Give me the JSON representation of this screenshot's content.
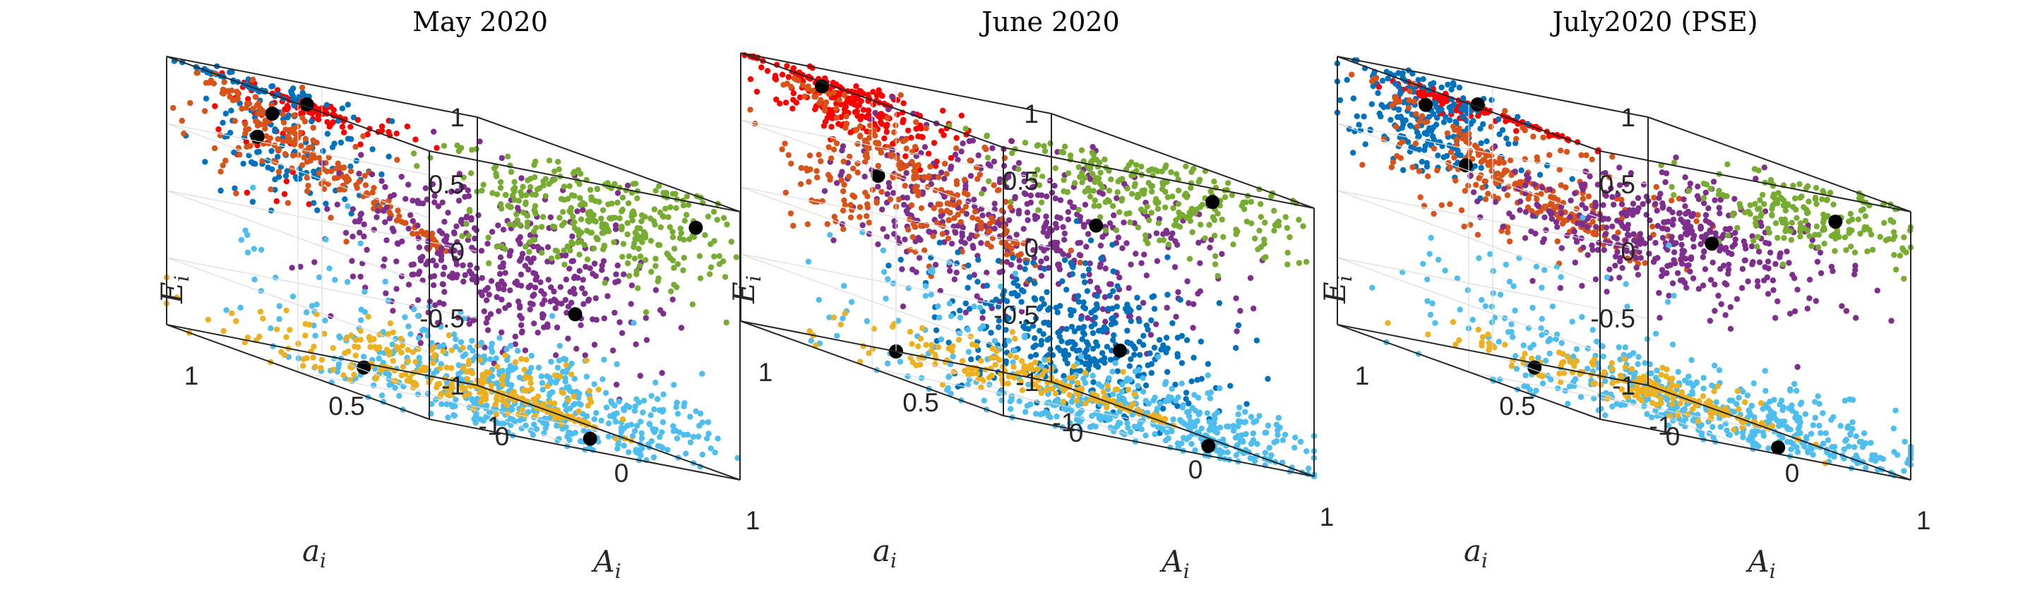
{
  "figure": {
    "panels": [
      {
        "title": "May 2020"
      },
      {
        "title": "June 2020"
      },
      {
        "title": "July2020 (PSE)"
      }
    ],
    "axis_labels": {
      "x": {
        "main": "A",
        "sub": "i"
      },
      "y": {
        "main": "a",
        "sub": "i"
      },
      "z": {
        "main": "E",
        "sub": "i"
      }
    },
    "ticks": {
      "z": [
        "-1",
        "-0.5",
        "0",
        "0.5",
        "1"
      ],
      "y": [
        "0",
        "0.5",
        "1"
      ],
      "x": [
        "-1",
        "0",
        "1"
      ]
    }
  },
  "chart_data": [
    {
      "type": "scatter",
      "projection": "3d",
      "title": "May 2020",
      "xlabel": "A_i",
      "ylabel": "a_i",
      "zlabel": "E_i",
      "xlim": [
        -1,
        1
      ],
      "ylim": [
        0,
        1
      ],
      "zlim": [
        -1,
        1
      ],
      "grid": true,
      "cluster_colors": [
        "#0072BD",
        "#D95319",
        "#EDB120",
        "#7E2F8E",
        "#77AC30",
        "#4DBEEE",
        "#FF0000"
      ],
      "centroid_color": "#000000",
      "centroids": [
        {
          "x": -0.05,
          "y": 0.95,
          "z": 1.0
        },
        {
          "x": -0.55,
          "y": 0.85,
          "z": 0.8
        },
        {
          "x": -0.9,
          "y": 0.75,
          "z": 0.55
        },
        {
          "x": 0.9,
          "y": 0.1,
          "z": 0.8
        },
        {
          "x": 0.1,
          "y": 0.15,
          "z": -0.15
        },
        {
          "x": 0.45,
          "y": 0.25,
          "z": -1.0
        },
        {
          "x": -0.8,
          "y": 0.45,
          "z": -1.0
        }
      ]
    },
    {
      "type": "scatter",
      "projection": "3d",
      "title": "June 2020",
      "xlabel": "A_i",
      "ylabel": "a_i",
      "zlabel": "E_i",
      "xlim": [
        -1,
        1
      ],
      "ylim": [
        0,
        1
      ],
      "zlim": [
        -1,
        1
      ],
      "grid": true,
      "cluster_colors": [
        "#0072BD",
        "#D95319",
        "#EDB120",
        "#7E2F8E",
        "#77AC30",
        "#4DBEEE",
        "#FF0000"
      ],
      "centroid_color": "#000000",
      "centroids": [
        {
          "x": -0.5,
          "y": 0.95,
          "z": 0.95
        },
        {
          "x": 0.7,
          "y": 0.2,
          "z": 0.85
        },
        {
          "x": -0.9,
          "y": 0.6,
          "z": 0.3
        },
        {
          "x": 0.05,
          "y": 0.3,
          "z": 0.4
        },
        {
          "x": 0.35,
          "y": 0.35,
          "z": -0.45
        },
        {
          "x": 0.55,
          "y": 0.15,
          "z": -1.0
        },
        {
          "x": -1.0,
          "y": 0.5,
          "z": -1.0
        }
      ]
    },
    {
      "type": "scatter",
      "projection": "3d",
      "title": "July2020 (PSE)",
      "xlabel": "A_i",
      "ylabel": "a_i",
      "zlabel": "E_i",
      "xlim": [
        -1,
        1
      ],
      "ylim": [
        0,
        1
      ],
      "zlim": [
        -1,
        1
      ],
      "grid": true,
      "cluster_colors": [
        "#0072BD",
        "#D95319",
        "#EDB120",
        "#7E2F8E",
        "#77AC30",
        "#4DBEEE",
        "#FF0000"
      ],
      "centroid_color": "#000000",
      "centroids": [
        {
          "x": -0.05,
          "y": 0.95,
          "z": 1.0
        },
        {
          "x": -0.8,
          "y": 0.8,
          "z": 0.8
        },
        {
          "x": -0.85,
          "y": 0.65,
          "z": 0.4
        },
        {
          "x": 0.9,
          "y": 0.2,
          "z": 0.8
        },
        {
          "x": 0.55,
          "y": 0.45,
          "z": 0.4
        },
        {
          "x": 0.7,
          "y": 0.3,
          "z": -1.0
        },
        {
          "x": -0.8,
          "y": 0.45,
          "z": -1.0
        }
      ]
    }
  ]
}
